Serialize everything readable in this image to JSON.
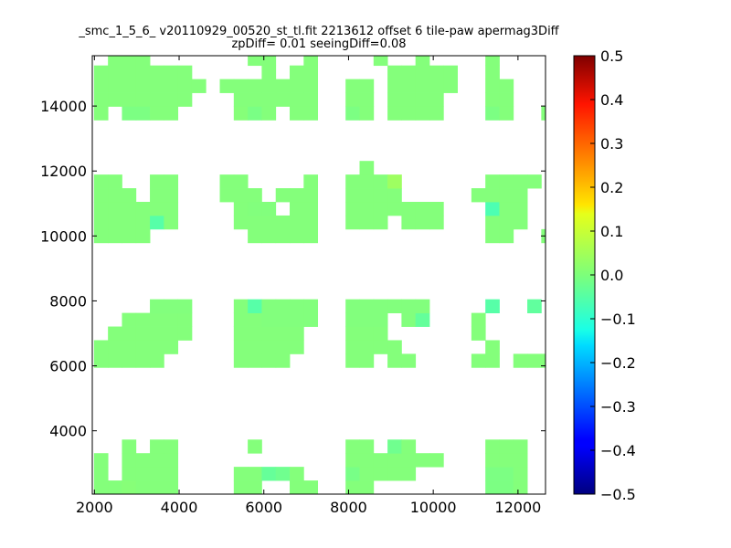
{
  "chart_data": {
    "type": "heatmap",
    "title": "_smc_1_5_6_ v20110929_00520_st_tl.fit 2213612 offset 6 tile-paw apermag3Diff",
    "subtitle": "zpDiff= 0.01 seeingDiff=0.08",
    "xlabel": "",
    "ylabel": "",
    "xlim": [
      1950,
      12650
    ],
    "ylim": [
      2050,
      15550
    ],
    "xticks": [
      "2000",
      "4000",
      "6000",
      "8000",
      "10000",
      "12000"
    ],
    "xtick_values": [
      2000,
      4000,
      6000,
      8000,
      10000,
      12000
    ],
    "yticks": [
      "4000",
      "6000",
      "8000",
      "10000",
      "12000",
      "14000"
    ],
    "ytick_values": [
      4000,
      6000,
      8000,
      10000,
      12000,
      14000
    ],
    "grid": false,
    "cell_size": [
      330,
      420
    ],
    "default_value": 0.0,
    "colorbar": {
      "colormap": "jet",
      "vmin": -0.5,
      "vmax": 0.5,
      "ticks": [
        "0.5",
        "0.4",
        "0.3",
        "0.2",
        "0.1",
        "0.0",
        "−0.1",
        "−0.2",
        "−0.3",
        "−0.4",
        "−0.5"
      ],
      "tick_values": [
        0.5,
        0.4,
        0.3,
        0.2,
        0.1,
        0.0,
        -0.1,
        -0.2,
        -0.3,
        -0.4,
        -0.5
      ]
    },
    "cells_low": [
      [
        1990,
        2050,
        4
      ],
      [
        2320,
        2050,
        4
      ],
      [
        2650,
        2050,
        7
      ],
      [
        2980,
        2050,
        4
      ],
      [
        3310,
        2050,
        4
      ],
      [
        3640,
        2050,
        4
      ],
      [
        1990,
        2470,
        4
      ],
      [
        2650,
        2470,
        4
      ],
      [
        2980,
        2470,
        4
      ],
      [
        3310,
        2470,
        4
      ],
      [
        3640,
        2470,
        4
      ],
      [
        1990,
        2890,
        4
      ],
      [
        2650,
        2890,
        4
      ],
      [
        2980,
        2890,
        4
      ],
      [
        3310,
        2890,
        4
      ],
      [
        3640,
        2890,
        4
      ],
      [
        2650,
        3310,
        4
      ],
      [
        3310,
        3310,
        4
      ],
      [
        3640,
        3310,
        4
      ],
      [
        5290,
        2050,
        4
      ],
      [
        5620,
        2050,
        4
      ],
      [
        6610,
        2050,
        4
      ],
      [
        6940,
        2050,
        4
      ],
      [
        5290,
        2470,
        4
      ],
      [
        5620,
        2470,
        4
      ],
      [
        5950,
        2470,
        -25
      ],
      [
        6280,
        2470,
        -15
      ],
      [
        6610,
        2470,
        4
      ],
      [
        5620,
        3310,
        4
      ],
      [
        7930,
        2050,
        4
      ],
      [
        8260,
        2050,
        4
      ],
      [
        7930,
        2470,
        -7
      ],
      [
        8260,
        2470,
        4
      ],
      [
        8590,
        2470,
        4
      ],
      [
        8920,
        2470,
        4
      ],
      [
        9250,
        2470,
        4
      ],
      [
        7930,
        2890,
        4
      ],
      [
        8260,
        2890,
        4
      ],
      [
        8590,
        2890,
        4
      ],
      [
        8920,
        2890,
        4
      ],
      [
        9250,
        2890,
        4
      ],
      [
        9580,
        2890,
        4
      ],
      [
        9910,
        2890,
        4
      ],
      [
        7930,
        3310,
        4
      ],
      [
        8260,
        3310,
        4
      ],
      [
        8920,
        3310,
        -15
      ],
      [
        9250,
        3310,
        4
      ],
      [
        11230,
        2050,
        -3
      ],
      [
        11560,
        2050,
        -3
      ],
      [
        11890,
        2050,
        4
      ],
      [
        11230,
        2470,
        -3
      ],
      [
        11560,
        2470,
        -3
      ],
      [
        11890,
        2470,
        4
      ],
      [
        11230,
        2890,
        4
      ],
      [
        11560,
        2890,
        4
      ],
      [
        11890,
        2890,
        4
      ],
      [
        11230,
        3310,
        4
      ],
      [
        11560,
        3310,
        4
      ],
      [
        11890,
        3310,
        4
      ],
      [
        1990,
        5950,
        4
      ],
      [
        2320,
        5950,
        4
      ],
      [
        2650,
        5950,
        4
      ],
      [
        2980,
        5950,
        4
      ],
      [
        3310,
        5950,
        4
      ],
      [
        1990,
        6370,
        4
      ],
      [
        2320,
        6370,
        4
      ],
      [
        2650,
        6370,
        4
      ],
      [
        2980,
        6370,
        4
      ],
      [
        3310,
        6370,
        4
      ],
      [
        3640,
        6370,
        4
      ],
      [
        2320,
        6790,
        4
      ],
      [
        2650,
        6790,
        4
      ],
      [
        2980,
        6790,
        4
      ],
      [
        3310,
        6790,
        4
      ],
      [
        3640,
        6790,
        4
      ],
      [
        3970,
        6790,
        4
      ],
      [
        2650,
        7210,
        4
      ],
      [
        2980,
        7210,
        4
      ],
      [
        3310,
        7210,
        4
      ],
      [
        3640,
        7210,
        4
      ],
      [
        3970,
        7210,
        4
      ],
      [
        3310,
        7630,
        2
      ],
      [
        3640,
        7630,
        2
      ],
      [
        3970,
        7630,
        2
      ],
      [
        5290,
        5950,
        4
      ],
      [
        5620,
        5950,
        4
      ],
      [
        5950,
        5950,
        4
      ],
      [
        6280,
        5950,
        4
      ],
      [
        5290,
        6370,
        4
      ],
      [
        5620,
        6370,
        4
      ],
      [
        5950,
        6370,
        4
      ],
      [
        6280,
        6370,
        4
      ],
      [
        6610,
        6370,
        4
      ],
      [
        5290,
        6790,
        4
      ],
      [
        5620,
        6790,
        4
      ],
      [
        5950,
        6790,
        4
      ],
      [
        6280,
        6790,
        4
      ],
      [
        6610,
        6790,
        4
      ],
      [
        5290,
        7210,
        4
      ],
      [
        5620,
        7210,
        4
      ],
      [
        5950,
        7210,
        2
      ],
      [
        6280,
        7210,
        2
      ],
      [
        6610,
        7210,
        2
      ],
      [
        6940,
        7210,
        2
      ],
      [
        5290,
        7630,
        4
      ],
      [
        5620,
        7630,
        -40
      ],
      [
        5950,
        7630,
        2
      ],
      [
        6280,
        7630,
        2
      ],
      [
        6610,
        7630,
        2
      ],
      [
        6940,
        7630,
        2
      ],
      [
        7930,
        5950,
        4
      ],
      [
        8260,
        5950,
        4
      ],
      [
        8920,
        5950,
        4
      ],
      [
        9250,
        5950,
        4
      ],
      [
        7930,
        6370,
        4
      ],
      [
        8260,
        6370,
        4
      ],
      [
        8590,
        6370,
        4
      ],
      [
        8920,
        6370,
        4
      ],
      [
        7930,
        6790,
        4
      ],
      [
        8260,
        6790,
        4
      ],
      [
        8590,
        6790,
        4
      ],
      [
        7930,
        7210,
        2
      ],
      [
        8260,
        7210,
        2
      ],
      [
        8590,
        7210,
        2
      ],
      [
        9250,
        7210,
        2
      ],
      [
        9580,
        7210,
        -27
      ],
      [
        7930,
        7630,
        2
      ],
      [
        8260,
        7630,
        2
      ],
      [
        8590,
        7630,
        2
      ],
      [
        8920,
        7630,
        2
      ],
      [
        9250,
        7630,
        2
      ],
      [
        9580,
        7630,
        2
      ],
      [
        10900,
        5950,
        4
      ],
      [
        11230,
        5950,
        4
      ],
      [
        11890,
        5950,
        4
      ],
      [
        12220,
        5950,
        4
      ],
      [
        12550,
        5950,
        4
      ],
      [
        11230,
        6370,
        4
      ],
      [
        10900,
        6790,
        4
      ],
      [
        10900,
        7210,
        4
      ],
      [
        11230,
        7630,
        -40
      ],
      [
        12220,
        7630,
        -30
      ]
    ],
    "cells_high": [
      [
        1990,
        9790,
        4
      ],
      [
        2320,
        9790,
        4
      ],
      [
        2650,
        9790,
        4
      ],
      [
        2980,
        9790,
        4
      ],
      [
        1990,
        10210,
        4
      ],
      [
        2320,
        10210,
        4
      ],
      [
        2650,
        10210,
        4
      ],
      [
        2980,
        10210,
        4
      ],
      [
        3310,
        10210,
        -40
      ],
      [
        3640,
        10210,
        4
      ],
      [
        1990,
        10630,
        4
      ],
      [
        2320,
        10630,
        4
      ],
      [
        2650,
        10630,
        4
      ],
      [
        2980,
        10630,
        4
      ],
      [
        3310,
        10630,
        4
      ],
      [
        3640,
        10630,
        4
      ],
      [
        1990,
        11050,
        4
      ],
      [
        2320,
        11050,
        4
      ],
      [
        2650,
        11050,
        4
      ],
      [
        3310,
        11050,
        4
      ],
      [
        3640,
        11050,
        4
      ],
      [
        1990,
        11470,
        4
      ],
      [
        2320,
        11470,
        4
      ],
      [
        3310,
        11470,
        4
      ],
      [
        3640,
        11470,
        4
      ],
      [
        5620,
        9790,
        4
      ],
      [
        5950,
        9790,
        4
      ],
      [
        6280,
        9790,
        4
      ],
      [
        6610,
        9790,
        4
      ],
      [
        6940,
        9790,
        4
      ],
      [
        5290,
        10210,
        4
      ],
      [
        5620,
        10210,
        4
      ],
      [
        5950,
        10210,
        4
      ],
      [
        6280,
        10210,
        4
      ],
      [
        6610,
        10210,
        4
      ],
      [
        6940,
        10210,
        4
      ],
      [
        5290,
        10630,
        4
      ],
      [
        5620,
        10630,
        2
      ],
      [
        5950,
        10630,
        2
      ],
      [
        6610,
        10630,
        4
      ],
      [
        6940,
        10630,
        4
      ],
      [
        4960,
        11050,
        4
      ],
      [
        5290,
        11050,
        4
      ],
      [
        5620,
        11050,
        4
      ],
      [
        6280,
        11050,
        4
      ],
      [
        6610,
        11050,
        4
      ],
      [
        6940,
        11050,
        4
      ],
      [
        4960,
        11470,
        4
      ],
      [
        5290,
        11470,
        4
      ],
      [
        6940,
        11470,
        4
      ],
      [
        7930,
        10210,
        4
      ],
      [
        8260,
        10210,
        4
      ],
      [
        8590,
        10210,
        4
      ],
      [
        9250,
        10210,
        4
      ],
      [
        9580,
        10210,
        4
      ],
      [
        9910,
        10210,
        4
      ],
      [
        7930,
        10630,
        4
      ],
      [
        8260,
        10630,
        4
      ],
      [
        8590,
        10630,
        4
      ],
      [
        8920,
        10630,
        4
      ],
      [
        9250,
        10630,
        4
      ],
      [
        9580,
        10630,
        4
      ],
      [
        9910,
        10630,
        4
      ],
      [
        7930,
        11050,
        4
      ],
      [
        8260,
        11050,
        4
      ],
      [
        8590,
        11050,
        4
      ],
      [
        8920,
        11050,
        4
      ],
      [
        7930,
        11470,
        4
      ],
      [
        8260,
        11470,
        4
      ],
      [
        8590,
        11470,
        4
      ],
      [
        8920,
        11470,
        30
      ],
      [
        8260,
        11890,
        4
      ],
      [
        11230,
        9790,
        4
      ],
      [
        11560,
        9790,
        4
      ],
      [
        12550,
        9790,
        4
      ],
      [
        11230,
        10210,
        4
      ],
      [
        11560,
        10210,
        4
      ],
      [
        11890,
        10210,
        4
      ],
      [
        11230,
        10630,
        -50
      ],
      [
        11560,
        10630,
        4
      ],
      [
        11890,
        10630,
        4
      ],
      [
        10900,
        11050,
        4
      ],
      [
        11230,
        11050,
        4
      ],
      [
        11560,
        11050,
        4
      ],
      [
        11890,
        11050,
        4
      ],
      [
        11230,
        11470,
        4
      ],
      [
        11560,
        11470,
        4
      ],
      [
        11890,
        11470,
        4
      ],
      [
        12220,
        11470,
        4
      ],
      [
        1990,
        13570,
        4
      ],
      [
        2650,
        13570,
        -3
      ],
      [
        2980,
        13570,
        -3
      ],
      [
        3310,
        13570,
        4
      ],
      [
        3640,
        13570,
        4
      ],
      [
        1990,
        13990,
        4
      ],
      [
        2320,
        13990,
        4
      ],
      [
        2650,
        13990,
        4
      ],
      [
        2980,
        13990,
        4
      ],
      [
        3310,
        13990,
        4
      ],
      [
        3640,
        13990,
        4
      ],
      [
        3970,
        13990,
        4
      ],
      [
        1990,
        14410,
        4
      ],
      [
        2320,
        14410,
        4
      ],
      [
        2650,
        14410,
        4
      ],
      [
        2980,
        14410,
        4
      ],
      [
        3310,
        14410,
        4
      ],
      [
        3640,
        14410,
        4
      ],
      [
        3970,
        14410,
        4
      ],
      [
        4300,
        14410,
        4
      ],
      [
        1990,
        14830,
        4
      ],
      [
        2320,
        14830,
        4
      ],
      [
        2650,
        14830,
        4
      ],
      [
        2980,
        14830,
        4
      ],
      [
        3310,
        14830,
        4
      ],
      [
        3640,
        14830,
        4
      ],
      [
        3970,
        14830,
        4
      ],
      [
        2320,
        15250,
        4
      ],
      [
        2650,
        15250,
        4
      ],
      [
        2980,
        15250,
        4
      ],
      [
        5290,
        13570,
        6
      ],
      [
        5620,
        13570,
        -5
      ],
      [
        5950,
        13570,
        4
      ],
      [
        6610,
        13570,
        4
      ],
      [
        6940,
        13570,
        4
      ],
      [
        5290,
        13990,
        4
      ],
      [
        5620,
        13990,
        4
      ],
      [
        5950,
        13990,
        4
      ],
      [
        6280,
        13990,
        4
      ],
      [
        6610,
        13990,
        4
      ],
      [
        6940,
        13990,
        4
      ],
      [
        4960,
        14410,
        4
      ],
      [
        5290,
        14410,
        4
      ],
      [
        5620,
        14410,
        4
      ],
      [
        5950,
        14410,
        4
      ],
      [
        6280,
        14410,
        4
      ],
      [
        6610,
        14410,
        4
      ],
      [
        6940,
        14410,
        4
      ],
      [
        5950,
        14830,
        4
      ],
      [
        6610,
        14830,
        4
      ],
      [
        6940,
        14830,
        4
      ],
      [
        5620,
        15250,
        4
      ],
      [
        5950,
        15250,
        4
      ],
      [
        6940,
        15250,
        4
      ],
      [
        7930,
        13570,
        -3
      ],
      [
        8260,
        13570,
        4
      ],
      [
        8920,
        13570,
        4
      ],
      [
        9250,
        13570,
        4
      ],
      [
        9580,
        13570,
        4
      ],
      [
        9910,
        13570,
        4
      ],
      [
        7930,
        13990,
        4
      ],
      [
        8260,
        13990,
        4
      ],
      [
        8920,
        13990,
        4
      ],
      [
        9250,
        13990,
        4
      ],
      [
        9580,
        13990,
        4
      ],
      [
        9910,
        13990,
        4
      ],
      [
        7930,
        14410,
        4
      ],
      [
        8260,
        14410,
        4
      ],
      [
        8920,
        14410,
        4
      ],
      [
        9250,
        14410,
        4
      ],
      [
        9580,
        14410,
        4
      ],
      [
        9910,
        14410,
        4
      ],
      [
        10240,
        14410,
        4
      ],
      [
        8920,
        14830,
        4
      ],
      [
        9250,
        14830,
        4
      ],
      [
        9580,
        14830,
        4
      ],
      [
        9910,
        14830,
        4
      ],
      [
        10240,
        14830,
        4
      ],
      [
        8590,
        15250,
        4
      ],
      [
        9580,
        15250,
        4
      ],
      [
        11230,
        13570,
        -3
      ],
      [
        11560,
        13570,
        4
      ],
      [
        12550,
        13570,
        4
      ],
      [
        11230,
        13990,
        4
      ],
      [
        11560,
        13990,
        4
      ],
      [
        11230,
        14410,
        4
      ],
      [
        11560,
        14410,
        4
      ],
      [
        11230,
        14830,
        4
      ],
      [
        11230,
        15250,
        4
      ]
    ]
  }
}
